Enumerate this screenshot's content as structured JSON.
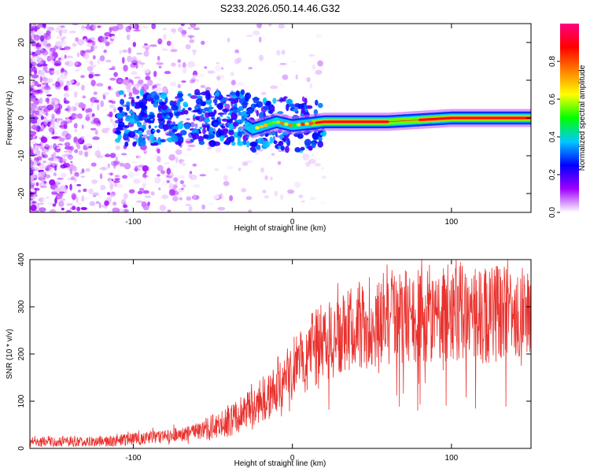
{
  "title": "S233.2026.050.14.46.G32",
  "colors": {
    "snr_line": "#e8322e",
    "spectro_faint": "#d8b8f0",
    "spectro_core": "#6a1fd6",
    "frame": "#000000"
  },
  "chart_data": [
    {
      "type": "heatmap",
      "title": "S233.2026.050.14.46.G32",
      "xlabel": "Height of straight line (km)",
      "ylabel": "Frequency (Hz)",
      "xlim": [
        -165,
        150
      ],
      "ylim": [
        -25,
        25
      ],
      "xticks": [
        -100,
        0,
        100
      ],
      "yticks": [
        -20,
        -10,
        0,
        10,
        20
      ],
      "colorbar": {
        "label": "Normalized spectral amplitude",
        "range": [
          0,
          1
        ],
        "ticks": [
          0.0,
          0.2,
          0.4,
          0.6,
          0.8
        ],
        "colormap": [
          "#ffffff",
          "#a000ff",
          "#0000ff",
          "#00c8ff",
          "#00ff00",
          "#ffff00",
          "#ff8000",
          "#ff0000",
          "#ff0080"
        ]
      },
      "ridge": {
        "center_frequency_hz": [
          [
            -100,
            0.5
          ],
          [
            -80,
            -1
          ],
          [
            -60,
            0
          ],
          [
            -40,
            1
          ],
          [
            -25,
            -3
          ],
          [
            -10,
            -1
          ],
          [
            0,
            -2
          ],
          [
            10,
            -1.5
          ],
          [
            20,
            -1
          ],
          [
            60,
            -1
          ],
          [
            100,
            0
          ],
          [
            150,
            0
          ]
        ],
        "high_amplitude_segments_km": [
          [
            15,
            60
          ],
          [
            80,
            150
          ]
        ]
      }
    },
    {
      "type": "line",
      "xlabel": "Height of straight line (km)",
      "ylabel": "SNR (10 * v/v)",
      "xlim": [
        -165,
        150
      ],
      "ylim": [
        0,
        400
      ],
      "xticks": [
        -100,
        0,
        100
      ],
      "yticks": [
        0,
        100,
        200,
        300,
        400
      ],
      "series": [
        {
          "name": "SNR",
          "trend": [
            [
              -165,
              15
            ],
            [
              -120,
              15
            ],
            [
              -100,
              20
            ],
            [
              -80,
              25
            ],
            [
              -60,
              35
            ],
            [
              -40,
              55
            ],
            [
              -20,
              100
            ],
            [
              0,
              170
            ],
            [
              20,
              230
            ],
            [
              40,
              260
            ],
            [
              60,
              275
            ],
            [
              80,
              285
            ],
            [
              100,
              290
            ],
            [
              120,
              285
            ],
            [
              150,
              280
            ]
          ],
          "peak": [
            103,
            400
          ]
        }
      ]
    }
  ]
}
